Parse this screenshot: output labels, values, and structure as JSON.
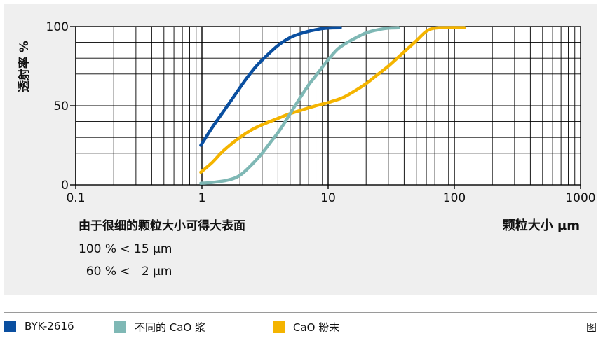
{
  "chart_data": {
    "type": "line",
    "xscale": "log",
    "xlim": [
      0.1,
      1000
    ],
    "ylim": [
      0,
      100
    ],
    "xticks": [
      0.1,
      1,
      10,
      100,
      1000
    ],
    "xtick_labels": [
      "0.1",
      "1",
      "10",
      "100",
      "1000"
    ],
    "yticks": [
      0,
      50,
      100
    ],
    "ytick_labels": [
      "0",
      "50",
      "100"
    ],
    "ylabel": "透射率 %",
    "xlabel": "颗粒大小 µm",
    "grid": true,
    "series": [
      {
        "name": "BYK-2616",
        "color": "#0a4fa0",
        "x": [
          0.98,
          1.2,
          1.5,
          1.8,
          2.2,
          2.7,
          3.3,
          4,
          5,
          6,
          7,
          8,
          9,
          10.5,
          12.5
        ],
        "y": [
          25,
          36,
          47,
          56,
          66,
          75,
          82,
          88,
          93,
          95.5,
          97,
          98,
          98.7,
          99.1,
          99.2
        ]
      },
      {
        "name": "不同的 CaO 浆",
        "color": "#7fb8b5",
        "x": [
          0.98,
          1.2,
          1.6,
          2,
          2.5,
          3,
          3.5,
          4,
          4.5,
          5,
          6,
          7,
          8,
          10,
          12,
          15,
          20,
          25,
          30,
          36
        ],
        "y": [
          1,
          1.5,
          3,
          6,
          13,
          20,
          27,
          33,
          39,
          45,
          55,
          63,
          69,
          79,
          86,
          91,
          96,
          98,
          99,
          99.2
        ]
      },
      {
        "name": "CaO 粉末",
        "color": "#f4b400",
        "x": [
          0.98,
          1.2,
          1.5,
          2,
          2.5,
          3,
          4,
          5,
          6,
          8,
          10,
          13,
          16,
          20,
          25,
          30,
          40,
          50,
          60,
          70,
          90,
          120
        ],
        "y": [
          8,
          14,
          22,
          30,
          35,
          38,
          42,
          45,
          47,
          50,
          52,
          55,
          59,
          64,
          70,
          75,
          84,
          91,
          97,
          99,
          99.3,
          99.3
        ]
      }
    ]
  },
  "notes": {
    "title": "由于很细的颗粒大小可得大表面",
    "line1": "100 % < 15 µm",
    "line2": "  60 % <   2 µm"
  },
  "legend": {
    "items": [
      {
        "label": "BYK-2616",
        "color": "#0a4fa0"
      },
      {
        "label": "不同的 CaO 浆",
        "color": "#7fb8b5"
      },
      {
        "label": "CaO 粉末",
        "color": "#f4b400"
      }
    ],
    "figure_label": "图"
  }
}
